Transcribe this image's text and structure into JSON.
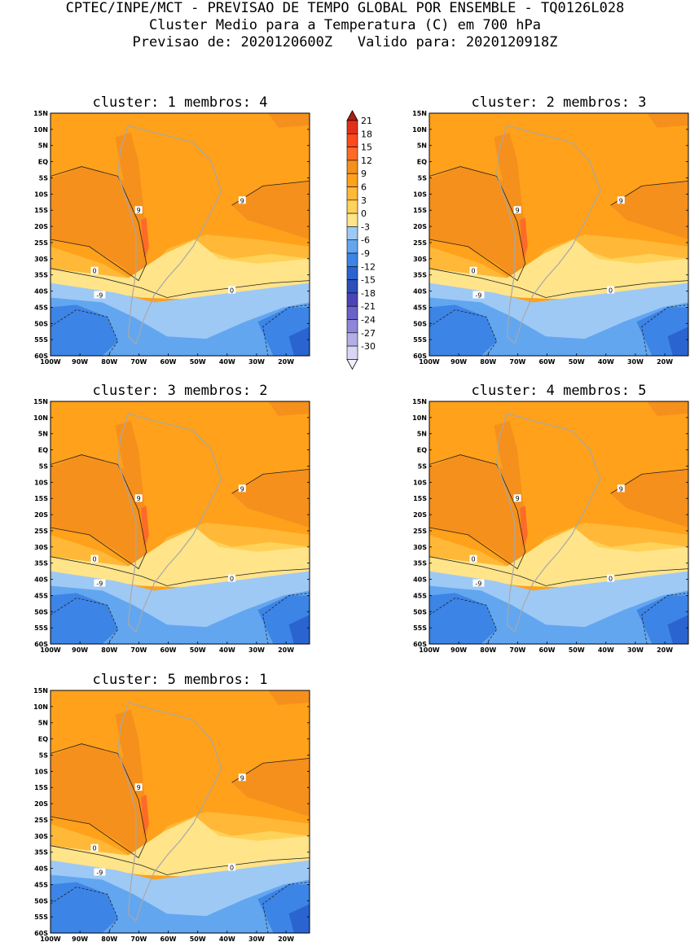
{
  "header": {
    "line1": "CPTEC/INPE/MCT - PREVISAO DE TEMPO GLOBAL POR ENSEMBLE - TQ0126L028",
    "line2": "Cluster Medio para a Temperatura (C) em 700 hPa",
    "line3": "Previsao de: 2020120600Z   Valido para: 2020120918Z"
  },
  "axes": {
    "lat_labels": [
      "15N",
      "10N",
      "5N",
      "EQ",
      "5S",
      "10S",
      "15S",
      "20S",
      "25S",
      "30S",
      "35S",
      "40S",
      "45S",
      "50S",
      "55S",
      "60S"
    ],
    "lon_labels": [
      "100W",
      "90W",
      "80W",
      "70W",
      "60W",
      "50W",
      "40W",
      "30W",
      "20W"
    ]
  },
  "colorbar": {
    "ticks": [
      "21",
      "18",
      "15",
      "12",
      "9",
      "6",
      "3",
      "0",
      "-3",
      "-6",
      "-9",
      "-12",
      "-15",
      "-18",
      "-21",
      "-24",
      "-27",
      "-30"
    ],
    "colors": [
      "#e0301a",
      "#ff4a1a",
      "#ff6a28",
      "#f5901c",
      "#ffa11a",
      "#ffb837",
      "#ffd259",
      "#ffe48a",
      "#9ec9f5",
      "#62a6f0",
      "#3c84e6",
      "#2a64d0",
      "#2c4fba",
      "#4a45b8",
      "#6a62c8",
      "#8f86d8",
      "#b3aee6",
      "#d8d6f4"
    ]
  },
  "panels": [
    {
      "title": "cluster: 1   membros: 4",
      "members": 4
    },
    {
      "title": "cluster: 2   membros: 3",
      "members": 3
    },
    {
      "title": "cluster: 3   membros: 2",
      "members": 2
    },
    {
      "title": "cluster: 4   membros: 5",
      "members": 5
    },
    {
      "title": "cluster: 5   membros: 1",
      "members": 1
    }
  ],
  "contour_labels": {
    "zero": "0",
    "nine": "9",
    "minus_nine": "-9"
  }
}
